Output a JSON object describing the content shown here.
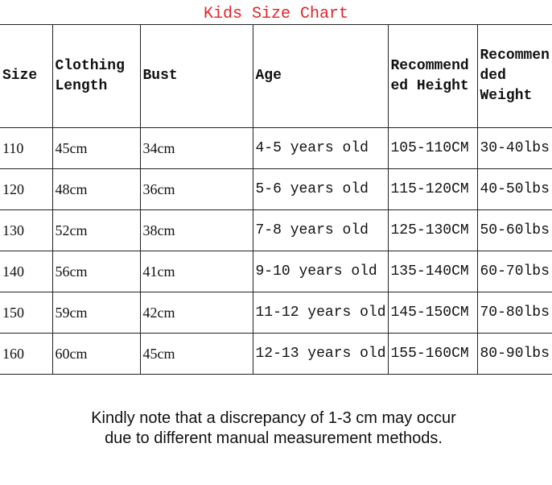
{
  "title": "Kids Size Chart",
  "table": {
    "header": [
      "Size",
      "Clothing Length",
      "Bust",
      "Age",
      "Recommended Height",
      "Recommended Weight"
    ],
    "rows": [
      [
        "110",
        "45cm",
        "34cm",
        "4-5 years old",
        "105-110CM",
        "30-40lbs"
      ],
      [
        "120",
        "48cm",
        "36cm",
        "5-6 years old",
        "115-120CM",
        "40-50lbs"
      ],
      [
        "130",
        "52cm",
        "38cm",
        "7-8 years old",
        "125-130CM",
        "50-60lbs"
      ],
      [
        "140",
        "56cm",
        "41cm",
        "9-10 years old",
        "135-140CM",
        "60-70lbs"
      ],
      [
        "150",
        "59cm",
        "42cm",
        "11-12 years old",
        "145-150CM",
        "70-80lbs"
      ],
      [
        "160",
        "60cm",
        "45cm",
        "12-13 years old",
        "155-160CM",
        "80-90lbs"
      ]
    ]
  },
  "note": {
    "lines": [
      "Kindly note that a discrepancy of 1-3 cm may occur",
      "due to different manual measurement methods."
    ]
  }
}
